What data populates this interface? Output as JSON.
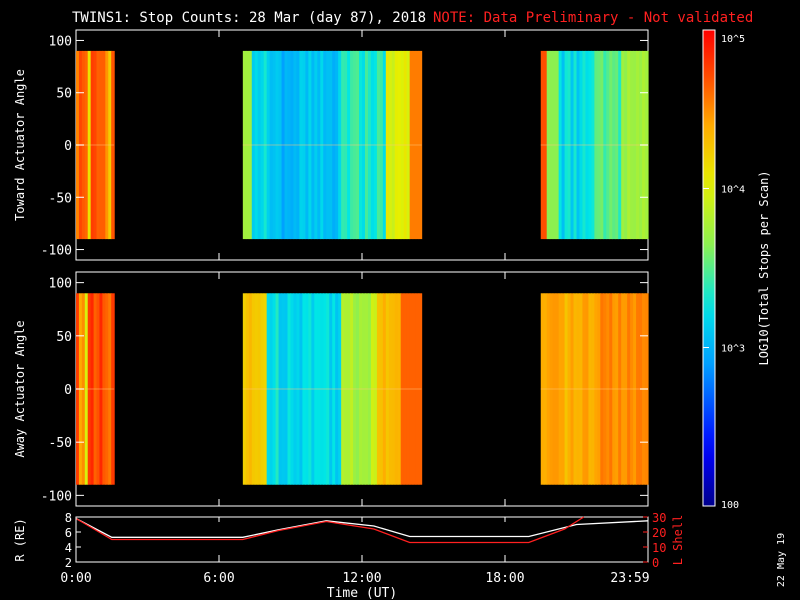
{
  "title": {
    "main": "TWINS1: Stop Counts: 28 Mar (day  87), 2018",
    "note": "NOTE: Data Preliminary - Not validated",
    "note_color": "#ff2020"
  },
  "footer_date": "22 May 19",
  "colorbar": {
    "label": "LOG10(Total Stops per Scan)",
    "ticks": [
      "10^5",
      "10^4",
      "10^3",
      "100"
    ],
    "scale": "log",
    "range": [
      100,
      100000
    ]
  },
  "chart_data": [
    {
      "type": "heatmap",
      "panel": "toward",
      "ylabel": "Toward Actuator Angle",
      "ylim": [
        -110,
        110
      ],
      "yticks": [
        "100",
        "50",
        "0",
        "-50",
        "-100"
      ],
      "angle_range": [
        -90,
        90
      ],
      "blocks": [
        {
          "start_hour": 0.0,
          "end_hour": 1.6,
          "level": "high"
        },
        {
          "start_hour": 7.0,
          "end_hour": 14.5,
          "level": "low-to-high"
        },
        {
          "start_hour": 19.5,
          "end_hour": 24.0,
          "level": "mixed"
        }
      ]
    },
    {
      "type": "heatmap",
      "panel": "away",
      "ylabel": "Away Actuator Angle",
      "ylim": [
        -110,
        110
      ],
      "yticks": [
        "100",
        "50",
        "0",
        "-50",
        "-100"
      ],
      "angle_range": [
        -90,
        90
      ],
      "blocks": [
        {
          "start_hour": 0.0,
          "end_hour": 1.6,
          "level": "high"
        },
        {
          "start_hour": 7.0,
          "end_hour": 14.5,
          "level": "medium-to-high"
        },
        {
          "start_hour": 19.5,
          "end_hour": 24.0,
          "level": "high"
        }
      ]
    },
    {
      "type": "line",
      "panel": "ephemeris",
      "xlabel": "Time (UT)",
      "xticks": [
        "0:00",
        "6:00",
        "12:00",
        "18:00",
        "23:59"
      ],
      "xlim": [
        0,
        24
      ],
      "left_axis": {
        "label": "R (RE)",
        "ylim": [
          2,
          8
        ],
        "ticks": [
          "8",
          "6",
          "4",
          "2"
        ]
      },
      "right_axis": {
        "label": "L Shell",
        "ylim": [
          0,
          30
        ],
        "ticks": [
          "30",
          "20",
          "10",
          "0"
        ],
        "color": "#ff2020"
      },
      "series": [
        {
          "name": "R",
          "axis": "left",
          "color": "#ffffff",
          "x": [
            0,
            1.5,
            4,
            7,
            8.5,
            10.5,
            12.5,
            14,
            16,
            19,
            21,
            24
          ],
          "values": [
            7.8,
            5.3,
            5.3,
            5.3,
            6.3,
            7.5,
            6.8,
            5.4,
            5.4,
            5.4,
            7.0,
            7.5
          ]
        },
        {
          "name": "L Shell",
          "axis": "right",
          "color": "#ff2020",
          "x": [
            0,
            1.5,
            4,
            7,
            8.5,
            10.5,
            12.5,
            14,
            16,
            19,
            20.5,
            21.3
          ],
          "values": [
            29,
            15,
            15,
            15,
            21,
            27,
            22,
            13,
            13,
            13,
            22,
            30
          ]
        }
      ]
    }
  ]
}
